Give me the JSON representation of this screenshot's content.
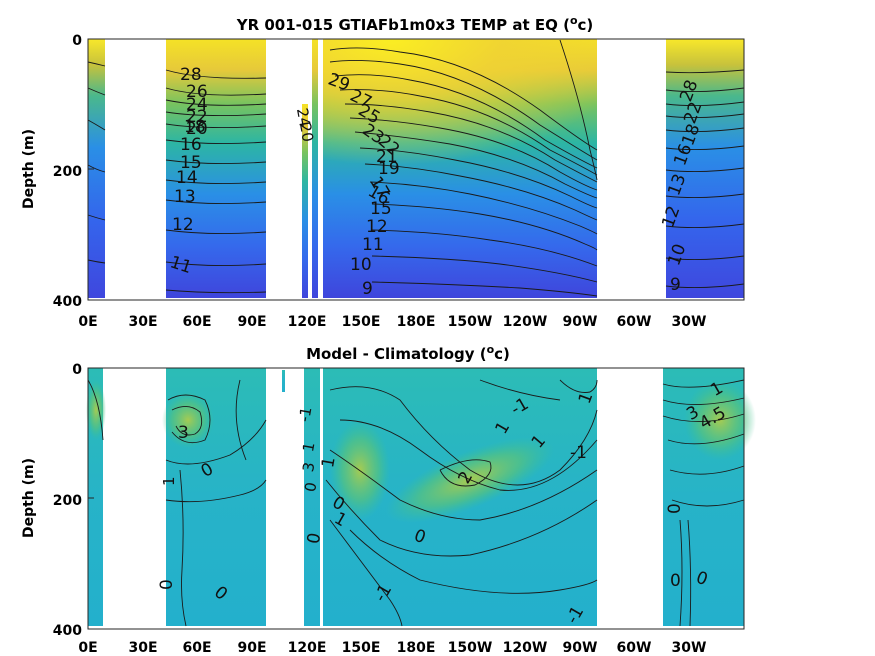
{
  "chart_data": [
    {
      "type": "heatmap",
      "title_main": "YR 001-015 GTIAFb1m0x3 TEMP at EQ (",
      "title_sup": "o",
      "title_end": "c)",
      "ylabel": "Depth (m)",
      "xlabel": "",
      "x_ticks": [
        "0E",
        "30E",
        "60E",
        "90E",
        "120E",
        "150E",
        "180E",
        "150W",
        "120W",
        "90W",
        "60W",
        "30W"
      ],
      "y_ticks": [
        "0",
        "200",
        "400"
      ],
      "ylim": [
        400,
        0
      ],
      "xlim_degrees_east": [
        0,
        360
      ],
      "colorscale": [
        "#3a3ed8",
        "#2f73ee",
        "#1fa2d6",
        "#2cbd9b",
        "#86c75a",
        "#d8c53a",
        "#f8ea28"
      ],
      "contour_labels": [
        "28",
        "26",
        "24",
        "22",
        "20",
        "18",
        "16",
        "15",
        "14",
        "13",
        "12",
        "11",
        "29",
        "27",
        "25",
        "23",
        "21",
        "19",
        "17",
        "10",
        "9"
      ]
    },
    {
      "type": "heatmap",
      "title_main": "Model - Climatology (",
      "title_sup": "o",
      "title_end": "c)",
      "ylabel": "Depth (m)",
      "xlabel": "",
      "x_ticks": [
        "0E",
        "30E",
        "60E",
        "90E",
        "120E",
        "150E",
        "180E",
        "150W",
        "120W",
        "90W",
        "60W",
        "30W"
      ],
      "y_ticks": [
        "0",
        "200",
        "400"
      ],
      "ylim": [
        400,
        0
      ],
      "xlim_degrees_east": [
        0,
        360
      ],
      "colorscale": [
        "#1fa8d8",
        "#24bcc0",
        "#3fc79a",
        "#8ccb5a",
        "#cfc63f"
      ],
      "contour_labels": [
        "3",
        "0",
        "1",
        "0",
        "0",
        "-1",
        "0",
        "-1",
        "1",
        "2",
        "1",
        "0",
        "1",
        "-1",
        "-1",
        "3",
        "4.5",
        "1",
        "0",
        "-1",
        "0",
        "0"
      ]
    }
  ]
}
